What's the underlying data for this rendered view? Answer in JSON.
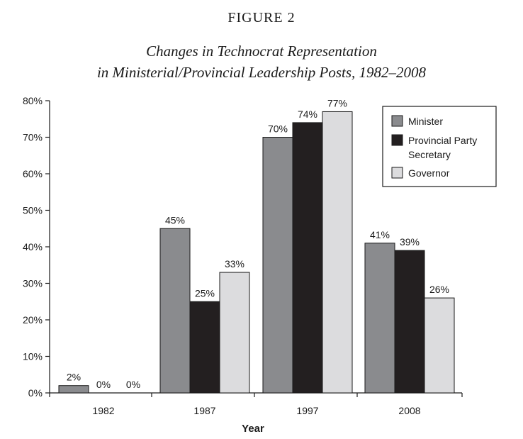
{
  "figure_label": "FIGURE 2",
  "chart_data": {
    "type": "bar",
    "title_lines": [
      "Changes in Technocrat Representation",
      "in Ministerial/Provincial Leadership Posts, 1982–2008"
    ],
    "xlabel": "Year",
    "ylabel": "",
    "categories": [
      "1982",
      "1987",
      "1997",
      "2008"
    ],
    "ylim": [
      0,
      80
    ],
    "yticks": [
      0,
      10,
      20,
      30,
      40,
      50,
      60,
      70,
      80
    ],
    "ytick_labels": [
      "0%",
      "10%",
      "20%",
      "30%",
      "40%",
      "50%",
      "60%",
      "70%",
      "80%"
    ],
    "grid": false,
    "legend_position": "top-right",
    "series": [
      {
        "name": "Minister",
        "legend_lines": [
          "Minister"
        ],
        "color": "#8a8b8e",
        "values": [
          2,
          45,
          70,
          41
        ],
        "labels": [
          "2%",
          "45%",
          "70%",
          "41%"
        ]
      },
      {
        "name": "Provincial Party Secretary",
        "legend_lines": [
          "Provincial Party",
          "Secretary"
        ],
        "color": "#231f20",
        "values": [
          0,
          25,
          74,
          39
        ],
        "labels": [
          "0%",
          "25%",
          "74%",
          "39%"
        ]
      },
      {
        "name": "Governor",
        "legend_lines": [
          "Governor"
        ],
        "color": "#dcdcde",
        "values": [
          0,
          33,
          77,
          26
        ],
        "labels": [
          "0%",
          "33%",
          "77%",
          "26%"
        ]
      }
    ]
  }
}
